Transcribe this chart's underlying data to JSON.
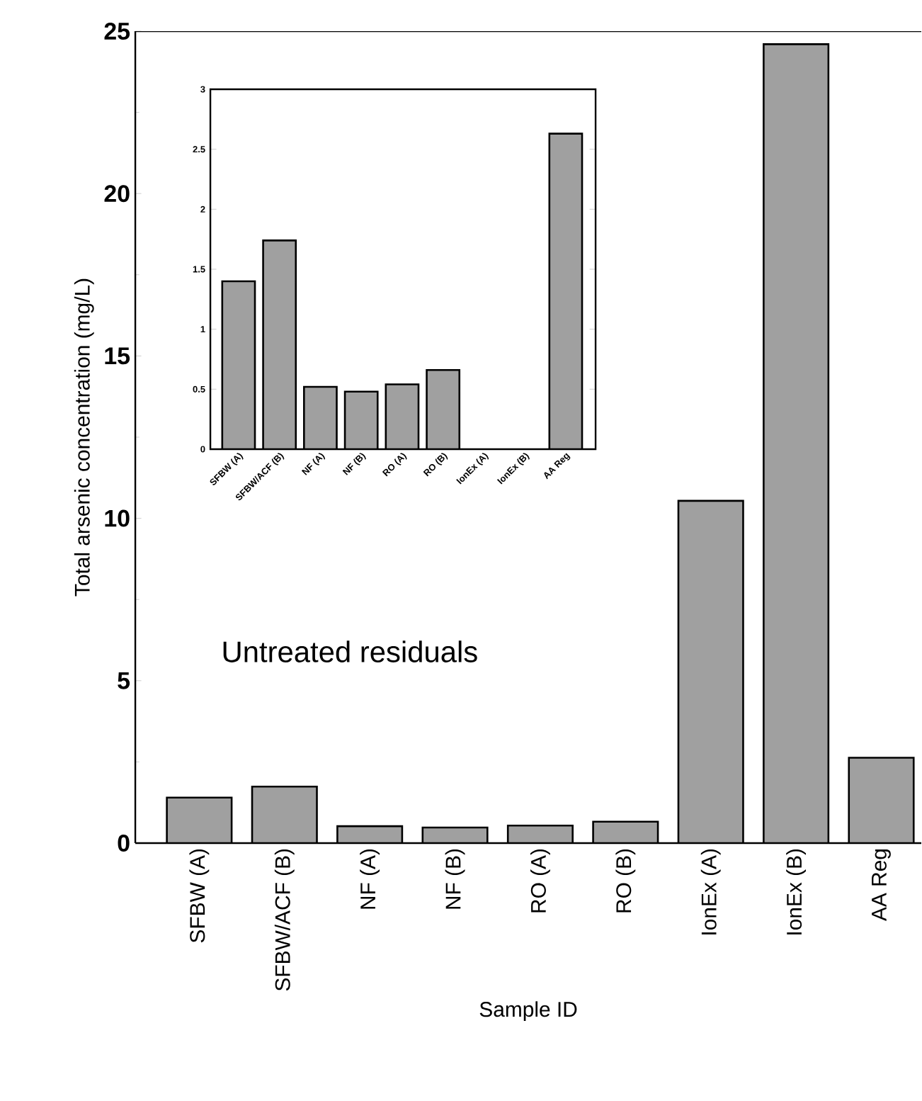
{
  "chart_data": [
    {
      "type": "bar",
      "xlabel": "Sample ID",
      "ylabel": "Total arsenic concentration (mg/L)",
      "categories": [
        "SFBW (A)",
        "SFBW/ACF (B)",
        "NF (A)",
        "NF (B)",
        "RO (A)",
        "RO (B)",
        "IonEx (A)",
        "IonEx (B)",
        "AA Reg"
      ],
      "values": [
        1.4,
        1.74,
        0.52,
        0.48,
        0.54,
        0.66,
        10.54,
        24.6,
        2.63
      ],
      "color": "#a0a0a0",
      "ylim": [
        0,
        25
      ],
      "yticks": [
        0,
        5,
        10,
        15,
        20,
        25
      ],
      "annotations": [
        "Untreated residuals"
      ]
    },
    {
      "type": "bar",
      "categories": [
        "SFBW (A)",
        "SFBW/ACF (B)",
        "NF (A)",
        "NF (B)",
        "RO (A)",
        "RO (B)",
        "IonEx (A)",
        "IonEx (B)",
        "AA Reg"
      ],
      "values": [
        1.4,
        1.74,
        0.52,
        0.48,
        0.54,
        0.66,
        null,
        null,
        2.63
      ],
      "color": "#a0a0a0",
      "ylim": [
        0,
        3
      ],
      "yticks": [
        0,
        0.5,
        1,
        1.5,
        2,
        2.5,
        3
      ]
    }
  ]
}
